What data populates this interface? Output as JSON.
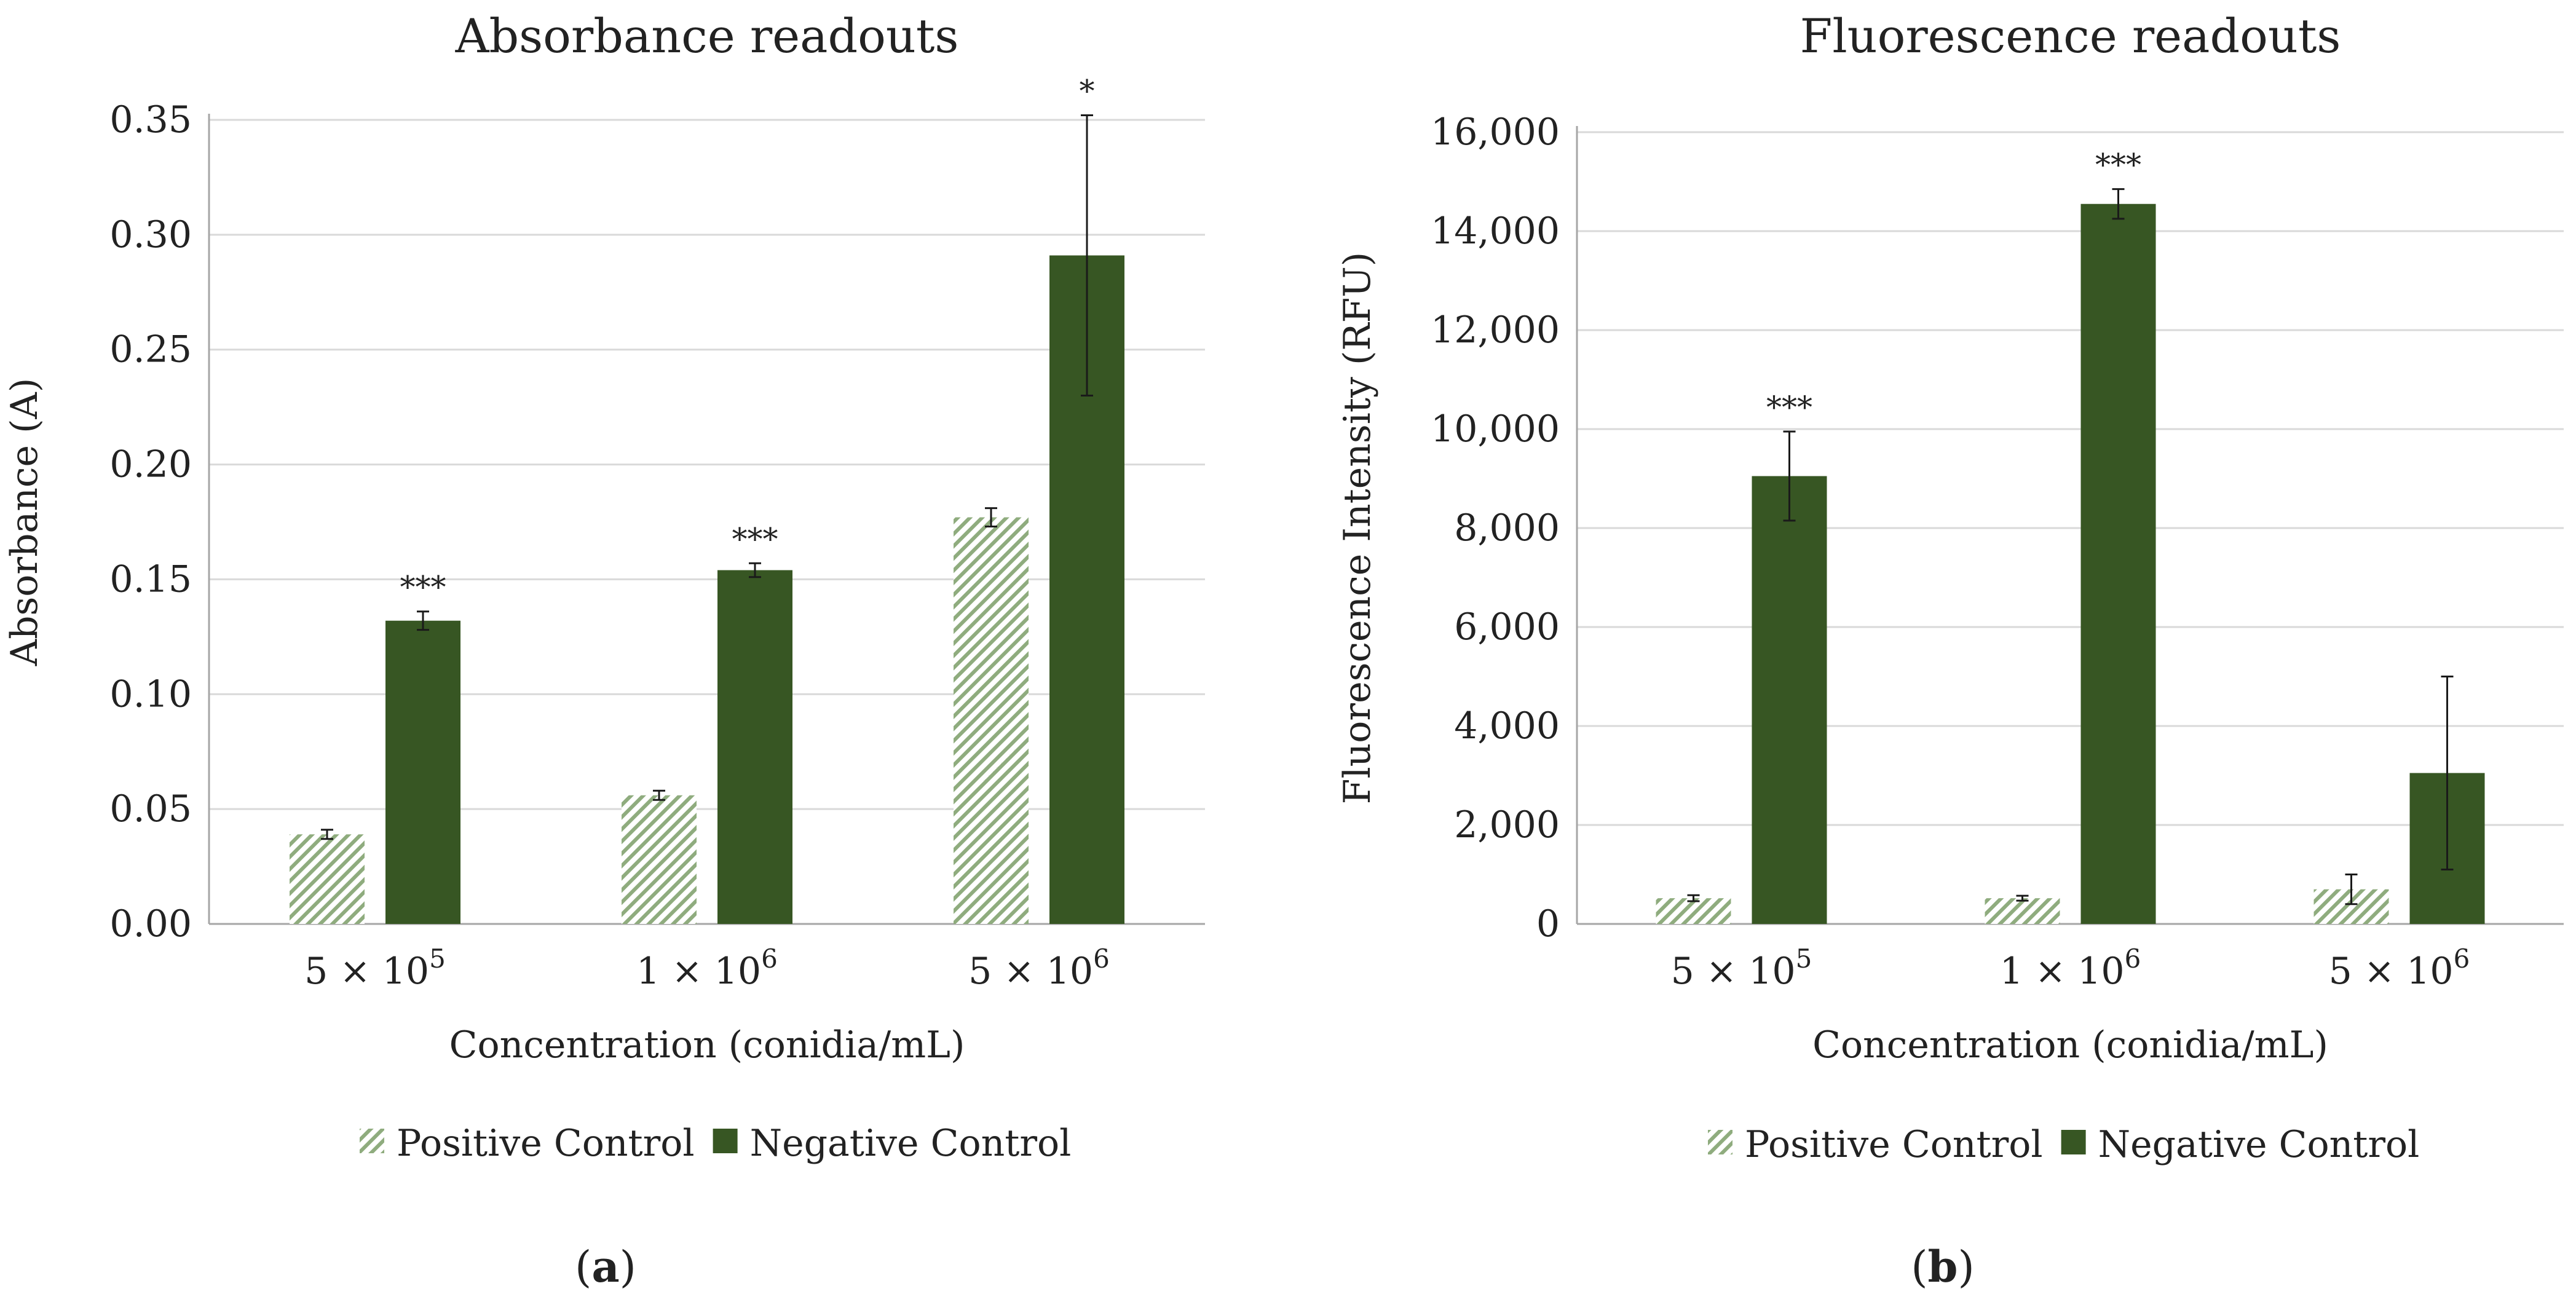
{
  "chart_data": [
    {
      "type": "bar",
      "title": "Absorbance readouts",
      "xlabel": "Concentration (conidia/mL)",
      "ylabel": "Absorbance (A)",
      "categories": [
        {
          "base": "5 × 10",
          "exp": "5"
        },
        {
          "base": "1 × 10",
          "exp": "6"
        },
        {
          "base": "5 × 10",
          "exp": "6"
        }
      ],
      "ylim": [
        0,
        0.35
      ],
      "yticks": [
        "0.00",
        "0.05",
        "0.10",
        "0.15",
        "0.20",
        "0.25",
        "0.30",
        "0.35"
      ],
      "grid": true,
      "series": [
        {
          "name": "Positive Control",
          "pattern": "hatched",
          "color": "#7a9a6a",
          "values": [
            0.039,
            0.056,
            0.177
          ],
          "errors": [
            0.002,
            0.002,
            0.004
          ]
        },
        {
          "name": "Negative Control",
          "pattern": "solid",
          "color": "#375623",
          "values": [
            0.132,
            0.154,
            0.291
          ],
          "errors": [
            0.004,
            0.003,
            0.061
          ]
        }
      ],
      "significance": [
        "***",
        "***",
        "*"
      ],
      "legend": "bottom",
      "panel_label": "a"
    },
    {
      "type": "bar",
      "title": "Fluorescence readouts",
      "xlabel": "Concentration (conidia/mL)",
      "ylabel": "Fluorescence Intensity (RFU)",
      "categories": [
        {
          "base": "5 × 10",
          "exp": "5"
        },
        {
          "base": "1 × 10",
          "exp": "6"
        },
        {
          "base": "5 × 10",
          "exp": "6"
        }
      ],
      "ylim": [
        0,
        16000
      ],
      "yticks": [
        "0",
        "2,000",
        "4,000",
        "6,000",
        "8,000",
        "10,000",
        "12,000",
        "14,000",
        "16,000"
      ],
      "grid": true,
      "series": [
        {
          "name": "Positive Control",
          "pattern": "hatched",
          "color": "#7a9a6a",
          "values": [
            520,
            520,
            700
          ],
          "errors": [
            60,
            50,
            300
          ]
        },
        {
          "name": "Negative Control",
          "pattern": "solid",
          "color": "#375623",
          "values": [
            9050,
            14550,
            3050
          ],
          "errors": [
            900,
            300,
            1950
          ]
        }
      ],
      "significance": [
        "***",
        "***",
        ""
      ],
      "legend": "bottom",
      "panel_label": "b"
    }
  ]
}
